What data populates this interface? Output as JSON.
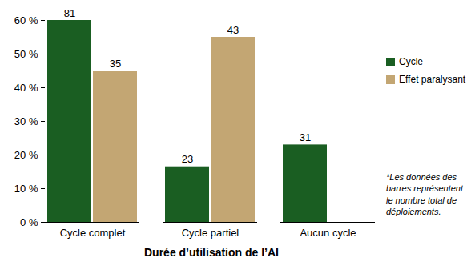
{
  "chart_data": {
    "type": "bar",
    "x_label": "Durée d’utilisation de l’AI",
    "annotation": "*Les données des barres représentent le nombre total de déploiements.",
    "categories": [
      "Cycle complet",
      "Cycle partiel",
      "Aucun cycle"
    ],
    "series": [
      {
        "name": "Cycle",
        "color": "#1a5e22",
        "values": [
          60,
          16.5,
          23
        ],
        "counts": [
          81,
          23,
          31
        ]
      },
      {
        "name": "Effet paralysant",
        "color": "#c3a673",
        "values": [
          45,
          55,
          null
        ],
        "counts": [
          35,
          43,
          null
        ]
      }
    ],
    "ylim": [
      0,
      60
    ],
    "yticks": [
      {
        "value": 0,
        "label": "0 %"
      },
      {
        "value": 10,
        "label": "10 %"
      },
      {
        "value": 20,
        "label": "20 %"
      },
      {
        "value": 30,
        "label": "30 %"
      },
      {
        "value": 40,
        "label": "40 %"
      },
      {
        "value": 50,
        "label": "50 %"
      },
      {
        "value": 60,
        "label": "60 %"
      }
    ],
    "grid": false,
    "legend": "right"
  }
}
